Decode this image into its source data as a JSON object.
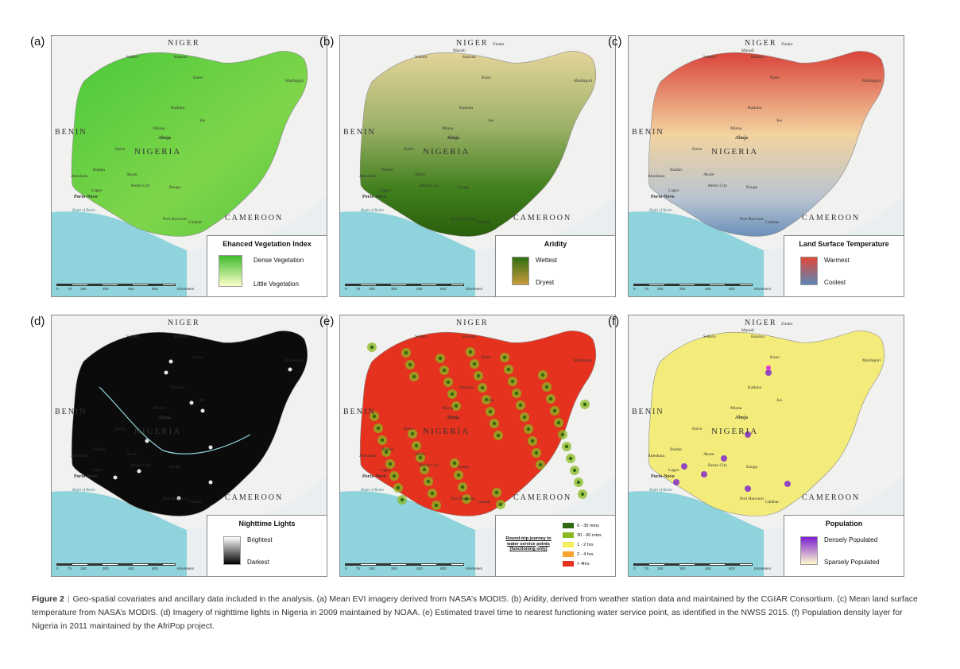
{
  "panels": [
    {
      "label": "(a)",
      "ramp": [
        "#3fbd2e",
        "#fdffc9"
      ],
      "legend": {
        "title": "Ehanced Vegetation Index",
        "high": "Dense Vegetation",
        "low": "Little Vegetation"
      }
    },
    {
      "label": "(b)",
      "ramp": [
        "#2f6e10",
        "#c89a3c"
      ],
      "legend": {
        "title": "Aridity",
        "high": "Wettest",
        "low": "Dryest"
      }
    },
    {
      "label": "(c)",
      "ramp": [
        "#e04a3a",
        "#5c86b5"
      ],
      "legend": {
        "title": "Land Surface Temperature",
        "high": "Warmest",
        "low": "Coolest"
      }
    },
    {
      "label": "(d)",
      "ramp": [
        "#ffffff",
        "#000000"
      ],
      "legend": {
        "title": "Nighttime Lights",
        "high": "Brightest",
        "low": "Darkest"
      }
    },
    {
      "label": "(e)",
      "legend": {
        "title": "Round-trip journey to water service points (functioning only)",
        "items": [
          {
            "text": "0 - 30 mins",
            "color": "#2f6a12"
          },
          {
            "text": "30 - 60 mins",
            "color": "#8ab822"
          },
          {
            "text": "1 - 2 hrs",
            "color": "#f6ee5a"
          },
          {
            "text": "2 - 4 hrs",
            "color": "#f7a232"
          },
          {
            "text": "> 4hrs",
            "color": "#e5321e"
          }
        ]
      }
    },
    {
      "label": "(f)",
      "ramp": [
        "#7b1fd0",
        "#fffbd0"
      ],
      "legend": {
        "title": "Population",
        "high": "Densely Populated",
        "low": "Sparsely Populated"
      }
    }
  ],
  "map_labels": {
    "niger": "NIGER",
    "benin": "BENIN",
    "nigeria": "NIGERIA",
    "cameroon": "CAMEROON",
    "abuja": "Abuja",
    "porto_novo": "Porto-Novo",
    "bight": "Bight of Benin",
    "sokoto": "Sokoto",
    "katsina": "Katsina",
    "kano": "Kano",
    "maiduguri": "Maiduguri",
    "kaduna": "Kaduna",
    "jos": "Jos",
    "minna": "Minna",
    "ilorin": "Ilorin",
    "ibadan": "Ibadan",
    "abeokuta": "Abeokuta",
    "lagos": "Lagos",
    "akure": "Akure",
    "benin_city": "Benin City",
    "enugu": "Enugu",
    "port_harcourt": "Port Harcourt",
    "calabar": "Calabar",
    "maradi": "Maradi",
    "zinder": "Zinder"
  },
  "scale_ticks": [
    "0",
    "75",
    "150",
    "300",
    "450",
    "600",
    "Kilometers"
  ],
  "caption": {
    "label": "Figure 2",
    "text": "Geo-spatial covariates and ancillary data included in the analysis. (a) Mean EVI imagery derived from NASA’s MODIS. (b) Aridity, derived from weather station data and maintained by the CGIAR Consortium. (c) Mean land surface temperature from NASA’s MODIS. (d) Imagery of nighttime lights in Nigeria in 2009 maintained by NOAA. (e) Estimated travel time to nearest functioning water service point, as identified in the NWSS 2015. (f) Population density layer for Nigeria in 2011 maintained by the AfriPop project."
  }
}
